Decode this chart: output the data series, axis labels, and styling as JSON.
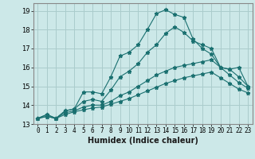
{
  "title": "",
  "xlabel": "Humidex (Indice chaleur)",
  "ylabel": "",
  "background_color": "#cce8e8",
  "grid_color": "#aacccc",
  "line_color": "#1a7070",
  "xlim": [
    -0.5,
    23.5
  ],
  "ylim": [
    13,
    19.4
  ],
  "yticks": [
    13,
    14,
    15,
    16,
    17,
    18,
    19
  ],
  "xticks": [
    0,
    1,
    2,
    3,
    4,
    5,
    6,
    7,
    8,
    9,
    10,
    11,
    12,
    13,
    14,
    15,
    16,
    17,
    18,
    19,
    20,
    21,
    22,
    23
  ],
  "lines": [
    {
      "x": [
        0,
        1,
        2,
        3,
        4,
        5,
        6,
        7,
        8,
        9,
        10,
        11,
        12,
        13,
        14,
        15,
        16,
        17,
        18,
        19,
        20,
        21,
        22,
        23
      ],
      "y": [
        13.3,
        13.5,
        13.3,
        13.7,
        13.8,
        14.7,
        14.7,
        14.6,
        15.5,
        16.6,
        16.8,
        17.2,
        18.0,
        18.85,
        19.05,
        18.8,
        18.65,
        17.5,
        17.0,
        16.7,
        16.0,
        15.9,
        16.0,
        15.0
      ]
    },
    {
      "x": [
        0,
        1,
        2,
        3,
        4,
        5,
        6,
        7,
        8,
        9,
        10,
        11,
        12,
        13,
        14,
        15,
        16,
        17,
        18,
        19,
        20,
        21,
        22,
        23
      ],
      "y": [
        13.3,
        13.5,
        13.3,
        13.7,
        13.8,
        14.2,
        14.3,
        14.2,
        14.8,
        15.5,
        15.8,
        16.2,
        16.8,
        17.2,
        17.8,
        18.15,
        17.85,
        17.4,
        17.2,
        17.0,
        16.0,
        15.9,
        15.5,
        15.0
      ]
    },
    {
      "x": [
        0,
        1,
        2,
        3,
        4,
        5,
        6,
        7,
        8,
        9,
        10,
        11,
        12,
        13,
        14,
        15,
        16,
        17,
        18,
        19,
        20,
        21,
        22,
        23
      ],
      "y": [
        13.3,
        13.4,
        13.3,
        13.6,
        13.7,
        13.9,
        14.0,
        14.0,
        14.2,
        14.5,
        14.7,
        15.0,
        15.3,
        15.6,
        15.8,
        16.0,
        16.1,
        16.2,
        16.3,
        16.4,
        16.0,
        15.6,
        15.2,
        14.9
      ]
    },
    {
      "x": [
        0,
        1,
        2,
        3,
        4,
        5,
        6,
        7,
        8,
        9,
        10,
        11,
        12,
        13,
        14,
        15,
        16,
        17,
        18,
        19,
        20,
        21,
        22,
        23
      ],
      "y": [
        13.3,
        13.4,
        13.3,
        13.5,
        13.65,
        13.75,
        13.85,
        13.9,
        14.05,
        14.2,
        14.35,
        14.55,
        14.75,
        14.95,
        15.15,
        15.3,
        15.45,
        15.55,
        15.65,
        15.75,
        15.45,
        15.15,
        14.85,
        14.65
      ]
    }
  ]
}
